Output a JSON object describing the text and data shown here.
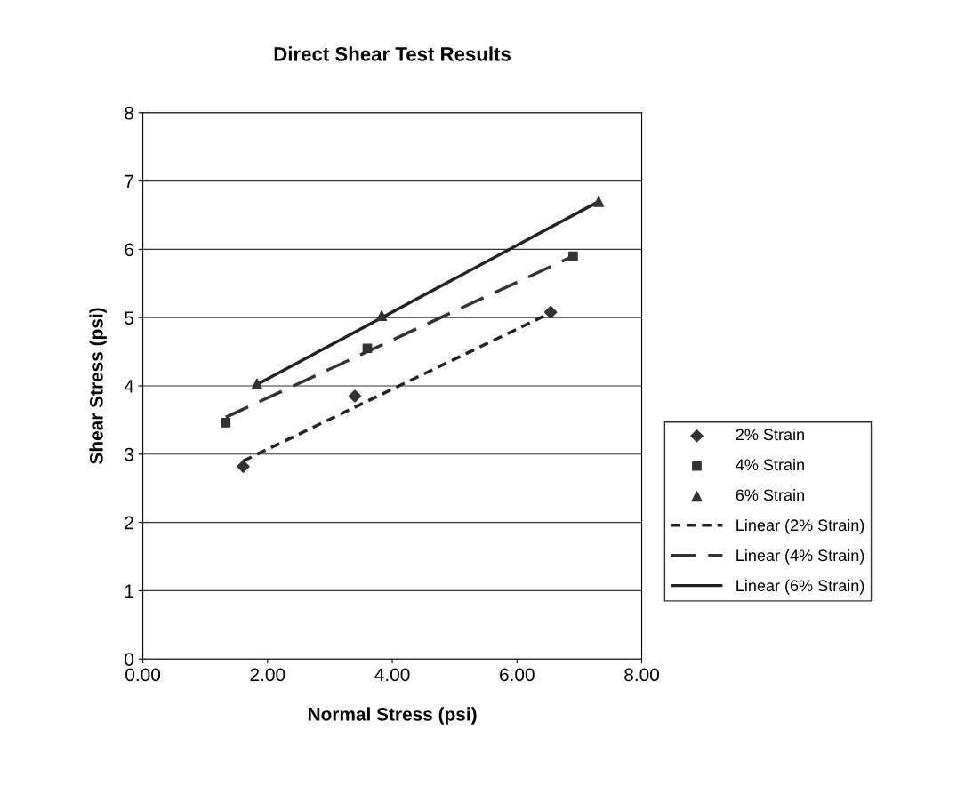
{
  "chart_data": {
    "type": "scatter",
    "title": "Direct Shear Test Results",
    "xlabel": "Normal Stress (psi)",
    "ylabel": "Shear Stress (psi)",
    "xlim": [
      0,
      8
    ],
    "xticks": [
      {
        "value": 0,
        "label": "0.00"
      },
      {
        "value": 2,
        "label": "2.00"
      },
      {
        "value": 4,
        "label": "4.00"
      },
      {
        "value": 6,
        "label": "6.00"
      },
      {
        "value": 8,
        "label": "8.00"
      }
    ],
    "ylim": [
      0,
      8
    ],
    "yticks": [
      0,
      1,
      2,
      3,
      4,
      5,
      6,
      7,
      8
    ],
    "grid": "y",
    "legend": "right",
    "series": [
      {
        "name": "2% Strain",
        "marker": "diamond",
        "color": "#333333",
        "x": [
          1.61,
          3.4,
          6.54
        ],
        "values": [
          2.82,
          3.85,
          5.08
        ]
      },
      {
        "name": "4% Strain",
        "marker": "square",
        "color": "#333333",
        "x": [
          1.33,
          3.6,
          6.9
        ],
        "values": [
          3.46,
          4.55,
          5.9
        ]
      },
      {
        "name": "6% Strain",
        "marker": "triangle",
        "color": "#333333",
        "x": [
          1.83,
          3.83,
          7.31
        ],
        "values": [
          4.03,
          5.03,
          6.7
        ]
      },
      {
        "name": "Linear (2% Strain)",
        "type": "line",
        "line_style": "dotted",
        "color": "#222222",
        "x": [
          1.61,
          6.54
        ],
        "values": [
          2.9,
          5.07
        ]
      },
      {
        "name": "Linear (4% Strain)",
        "type": "line",
        "line_style": "dashed",
        "color": "#333333",
        "x": [
          1.33,
          6.9
        ],
        "values": [
          3.54,
          5.9
        ]
      },
      {
        "name": "Linear (6% Strain)",
        "type": "line",
        "line_style": "solid",
        "color": "#222222",
        "x": [
          1.83,
          7.31
        ],
        "values": [
          4.02,
          6.7
        ]
      }
    ]
  }
}
